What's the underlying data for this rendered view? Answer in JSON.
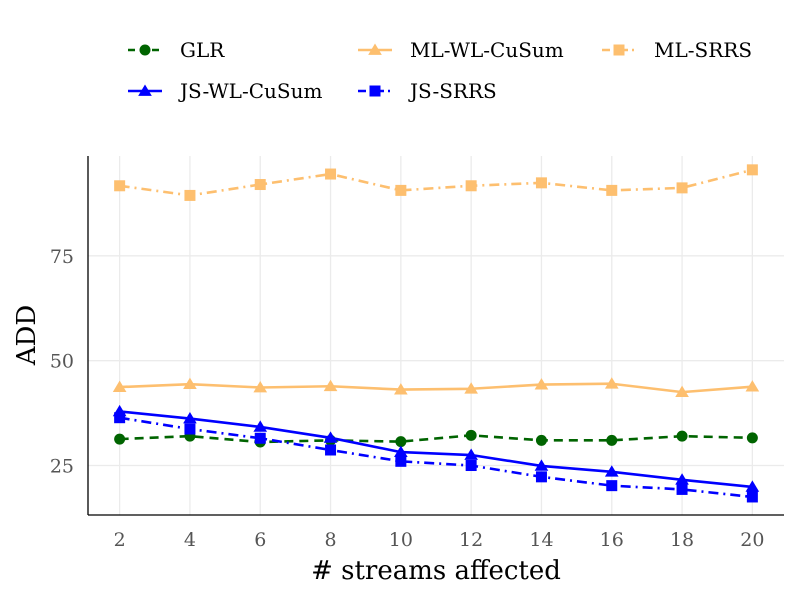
{
  "chart_data": {
    "type": "line",
    "title": "",
    "xlabel": "# streams affected",
    "ylabel": "ADD",
    "x": [
      2,
      4,
      6,
      8,
      10,
      12,
      14,
      16,
      18,
      20
    ],
    "xticks": [
      "2",
      "4",
      "6",
      "8",
      "10",
      "12",
      "14",
      "16",
      "18",
      "20"
    ],
    "yticks": [
      25,
      50,
      75
    ],
    "ytick_labels": [
      "25",
      "50",
      "75"
    ],
    "xlim": [
      1.1,
      20.9
    ],
    "ylim": [
      13.2,
      98.8
    ],
    "grid": true,
    "legend_position": "top",
    "series": [
      {
        "name": "GLR",
        "color": "#006400",
        "marker": "circle",
        "line_style": "dashed",
        "values": [
          31.3,
          32.0,
          30.6,
          31.0,
          30.7,
          32.2,
          31.0,
          31.0,
          32.0,
          31.6
        ]
      },
      {
        "name": "ML-WL-CuSum",
        "color": "#FDBF6F",
        "marker": "triangle",
        "line_style": "solid",
        "values": [
          43.7,
          44.4,
          43.6,
          43.9,
          43.1,
          43.3,
          44.3,
          44.5,
          42.5,
          43.8
        ]
      },
      {
        "name": "ML-SRRS",
        "color": "#FDBF6F",
        "marker": "square",
        "line_style": "dashdot",
        "values": [
          91.7,
          89.4,
          92.0,
          94.5,
          90.6,
          91.7,
          92.4,
          90.6,
          91.2,
          95.5
        ]
      },
      {
        "name": "JS-WL-CuSum",
        "color": "#0000FF",
        "marker": "triangle",
        "line_style": "solid",
        "values": [
          37.9,
          36.2,
          34.2,
          31.6,
          28.2,
          27.5,
          24.9,
          23.5,
          21.6,
          19.9
        ]
      },
      {
        "name": "JS-SRRS",
        "color": "#0000FF",
        "marker": "square",
        "line_style": "dashdot",
        "values": [
          36.4,
          33.7,
          31.5,
          28.7,
          26.0,
          25.0,
          22.3,
          20.2,
          19.3,
          17.5
        ]
      }
    ]
  }
}
